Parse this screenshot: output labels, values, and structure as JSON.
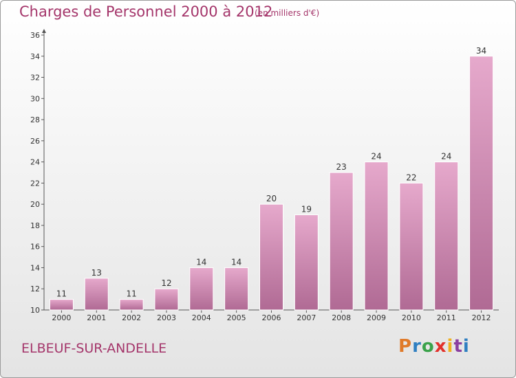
{
  "header": {
    "title": "Charges de Personnel 2000 à 2012",
    "subtitle": "(en milliers d'€)"
  },
  "footer": {
    "commune": "ELBEUF-SUR-ANDELLE",
    "logo": [
      "P",
      "r",
      "o",
      "x",
      "i",
      "t",
      "i"
    ]
  },
  "colors": {
    "title": "#a4356a",
    "bar_top": "#e6a9cc",
    "bar_bottom": "#b06a94",
    "logo": [
      "#e07a2a",
      "#2f7fc1",
      "#3aa24a",
      "#e2312b",
      "#f0b020",
      "#8a3fa0",
      "#2f7fc1"
    ]
  },
  "chart_data": {
    "type": "bar",
    "categories": [
      "2000",
      "2001",
      "2002",
      "2003",
      "2004",
      "2005",
      "2006",
      "2007",
      "2008",
      "2009",
      "2010",
      "2011",
      "2012"
    ],
    "values": [
      11,
      13,
      11,
      12,
      14,
      14,
      20,
      19,
      23,
      24,
      22,
      24,
      34
    ],
    "ylim": [
      10,
      36
    ],
    "yticks": [
      10,
      12,
      14,
      16,
      18,
      20,
      22,
      24,
      26,
      28,
      30,
      32,
      34,
      36
    ],
    "grid": false,
    "xlabel": "",
    "ylabel": ""
  }
}
